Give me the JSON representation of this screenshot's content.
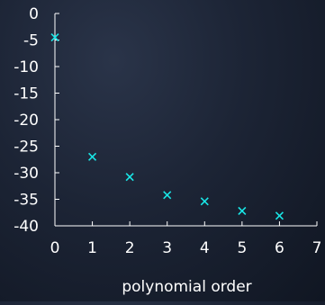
{
  "chart_data": {
    "type": "scatter",
    "title": "",
    "xlabel": "polynomial order",
    "ylabel": "",
    "xlim": [
      0,
      7
    ],
    "ylim": [
      -40,
      0
    ],
    "x_ticks": [
      0,
      1,
      2,
      3,
      4,
      5,
      6,
      7
    ],
    "y_ticks": [
      0,
      -5,
      -10,
      -15,
      -20,
      -25,
      -30,
      -35,
      -40
    ],
    "grid": false,
    "legend": "none",
    "marker": "x",
    "series": [
      {
        "x": [
          0,
          1,
          2,
          3,
          4,
          5,
          6
        ],
        "y": [
          -4.5,
          -27.0,
          -30.8,
          -34.2,
          -35.4,
          -37.2,
          -38.1
        ]
      }
    ],
    "colors": {
      "axis": "#ffffff",
      "marker": "#19e6e6"
    }
  }
}
